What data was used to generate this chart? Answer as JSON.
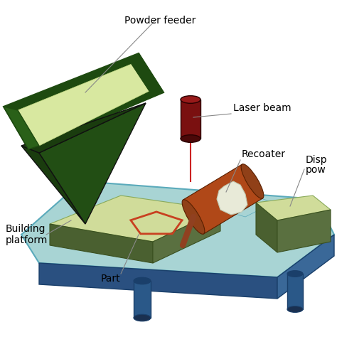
{
  "labels": {
    "powder_feeder": "Powder feeder",
    "laser_beam": "Laser beam",
    "recoater": "Recoater",
    "disp_pow1": "Disp",
    "disp_pow2": "pow",
    "building_platform": "Building\nplatform",
    "part": "Part"
  },
  "colors": {
    "background": "#ffffff",
    "table_top": "#a8d4d4",
    "table_side_front": "#2a5080",
    "table_side_right": "#3a6898",
    "table_edge": "#4a88b8",
    "build_surface": "#d0dc9a",
    "build_chamber_dark": "#5a7040",
    "build_chamber_wall": "#6a8050",
    "right_surface": "#d0dc9a",
    "right_chamber_dark": "#5a7040",
    "funnel_rim_top": "#d8e8a0",
    "funnel_rim_dark": "#1e4a10",
    "funnel_rim_mid": "#2a6018",
    "funnel_body_dark": "#1a3c0e",
    "funnel_body_mid": "#224e14",
    "funnel_body_light": "#2e6420",
    "laser_top": "#991a1a",
    "laser_body": "#7a1010",
    "laser_bottom": "#5a0808",
    "laser_beam_color": "#cc2222",
    "roller_body": "#b04818",
    "roller_end": "#8a3010",
    "roller_rod": "#904020",
    "sintered_blob": "#e8ead8",
    "sintered_edge": "#c0c8b0",
    "pentagon_color": "#c84020",
    "cylinder_dark": "#1a3f6a",
    "cylinder_mid": "#2a5888"
  }
}
